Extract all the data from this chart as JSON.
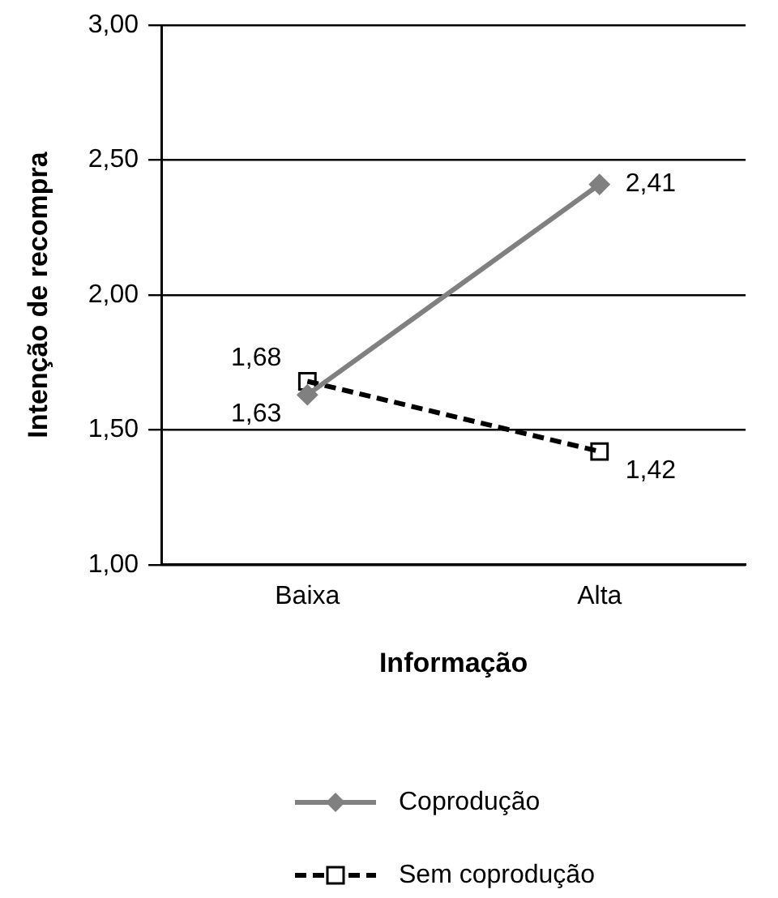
{
  "chart_data": {
    "type": "line",
    "xlabel": "Informação",
    "ylabel": "Intenção de recompra",
    "categories": [
      "Baixa",
      "Alta"
    ],
    "series": [
      {
        "name": "Coprodução",
        "color": "#808080",
        "values": [
          1.63,
          2.41
        ],
        "value_labels": [
          "1,63",
          "2,41"
        ],
        "marker": "diamond",
        "line_style": "solid"
      },
      {
        "name": "Sem coprodução",
        "color": "#000000",
        "values": [
          1.68,
          1.42
        ],
        "value_labels": [
          "1,68",
          "1,42"
        ],
        "marker": "square",
        "line_style": "dashed"
      }
    ],
    "ylim": [
      1,
      3
    ],
    "yticks": [
      {
        "value": 1,
        "label": "1,00"
      },
      {
        "value": 1.5,
        "label": "1,50"
      },
      {
        "value": 2,
        "label": "2,00"
      },
      {
        "value": 2.5,
        "label": "2,50"
      },
      {
        "value": 3,
        "label": "3,00"
      }
    ],
    "grid": "y",
    "legend": "bottom"
  }
}
